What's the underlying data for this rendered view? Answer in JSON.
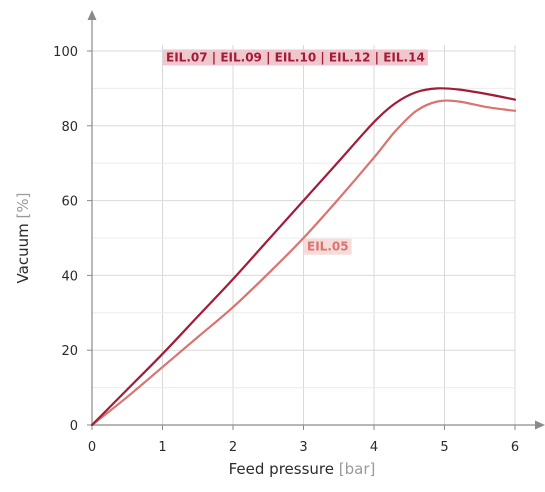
{
  "chart_data": {
    "type": "line",
    "xlabel": "Feed pressure",
    "xunit": "[bar]",
    "ylabel": "Vacuum",
    "yunit": "[%]",
    "xlim": [
      0,
      6
    ],
    "ylim": [
      0,
      100
    ],
    "xticks": [
      0,
      1,
      2,
      3,
      4,
      5,
      6
    ],
    "yticks": [
      0,
      20,
      40,
      60,
      80,
      100
    ],
    "grid": true,
    "series": [
      {
        "name": "EIL.07 | EIL.09 | EIL.10 | EIL.12 | EIL.14",
        "color": "#a31c37",
        "label_bg": "#f0c7cd",
        "x": [
          0,
          0.5,
          1,
          1.5,
          2,
          2.5,
          3,
          3.5,
          4,
          4.3,
          4.6,
          4.9,
          5.2,
          5.6,
          6
        ],
        "y": [
          0,
          9.5,
          19,
          29,
          39,
          49.5,
          60,
          70.5,
          81,
          86,
          89,
          90,
          89.7,
          88.5,
          87
        ]
      },
      {
        "name": "EIL.05",
        "color": "#d9746f",
        "label_bg": "#f6dcd9",
        "x": [
          0,
          0.5,
          1,
          1.5,
          2,
          2.5,
          3,
          3.5,
          4,
          4.3,
          4.6,
          4.9,
          5.2,
          5.6,
          6
        ],
        "y": [
          0,
          7.5,
          15.5,
          23.5,
          31.5,
          40.5,
          50,
          60.5,
          71.5,
          78.5,
          84,
          86.5,
          86.5,
          85,
          84
        ]
      }
    ]
  }
}
